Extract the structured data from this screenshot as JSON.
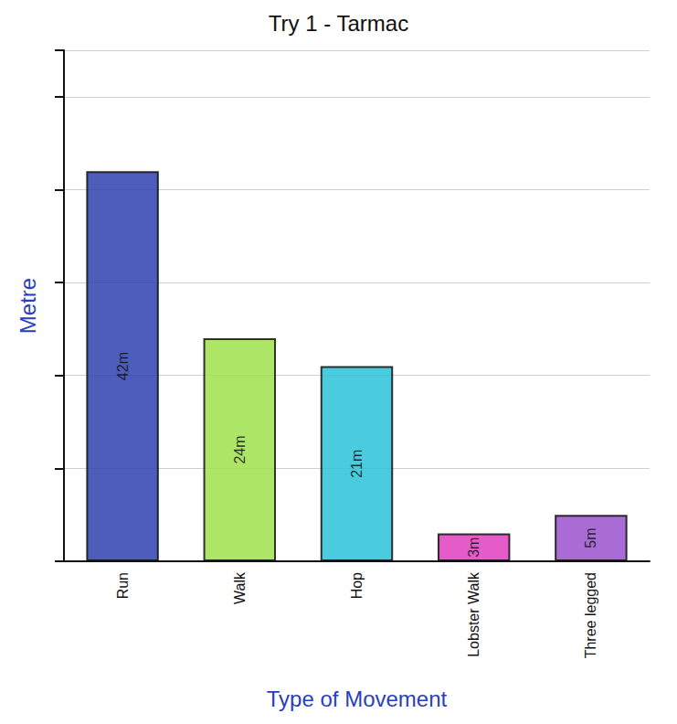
{
  "chart_data": {
    "type": "bar",
    "title": "Try 1 - Tarmac",
    "x_label": "Type of Movement",
    "y_label": "Metre",
    "categories": [
      "Run",
      "Walk",
      "Hop",
      "Lobster Walk",
      "Three legged"
    ],
    "values": [
      42,
      24,
      21,
      3,
      5
    ],
    "value_labels": [
      "42m",
      "24m",
      "21m",
      "3m",
      "5m"
    ],
    "colors": [
      "#2f3fb0",
      "#9fe04c",
      "#2cc2d8",
      "#e040c0",
      "#9a52cc"
    ],
    "ylim": [
      0,
      55
    ],
    "yticks": [
      0,
      10,
      20,
      30,
      40,
      50
    ],
    "grid": true,
    "data_labels": true,
    "tick_labels": false
  }
}
